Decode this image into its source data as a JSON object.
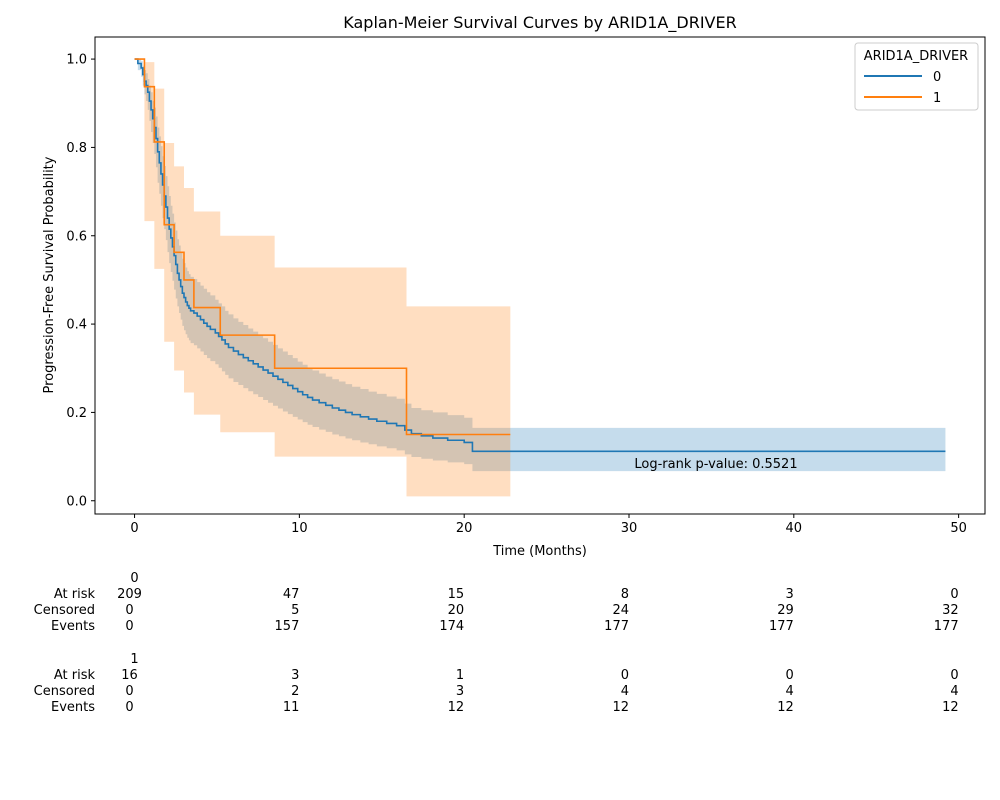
{
  "chart_data": {
    "type": "line",
    "title": "Kaplan-Meier Survival Curves by ARID1A_DRIVER",
    "xlabel": "Time (Months)",
    "ylabel": "Progression-Free Survival Probability",
    "xlim": [
      -2.4,
      51.6
    ],
    "ylim": [
      -0.03,
      1.05
    ],
    "xticks": [
      0,
      10,
      20,
      30,
      40,
      50
    ],
    "xtick_labels": [
      "0",
      "10",
      "20",
      "30",
      "40",
      "50"
    ],
    "yticks": [
      0.0,
      0.2,
      0.4,
      0.6,
      0.8,
      1.0
    ],
    "ytick_labels": [
      "0.0",
      "0.2",
      "0.4",
      "0.6",
      "0.8",
      "1.0"
    ],
    "grid": false,
    "legend": {
      "title": "ARID1A_DRIVER",
      "position": "top-right"
    },
    "annotation": {
      "text": "Log-rank p-value: 0.5521",
      "x": 35,
      "y": 0.07
    },
    "series": [
      {
        "name": "0",
        "color": "#1f77b4",
        "times": [
          0,
          0.2,
          0.4,
          0.5,
          0.6,
          0.7,
          0.8,
          0.9,
          1.0,
          1.1,
          1.2,
          1.3,
          1.4,
          1.5,
          1.6,
          1.7,
          1.8,
          1.9,
          2.0,
          2.1,
          2.2,
          2.3,
          2.4,
          2.5,
          2.6,
          2.7,
          2.8,
          2.9,
          3.0,
          3.1,
          3.2,
          3.3,
          3.4,
          3.6,
          3.8,
          4.0,
          4.2,
          4.4,
          4.6,
          4.9,
          5.1,
          5.3,
          5.5,
          5.7,
          6.0,
          6.3,
          6.6,
          6.9,
          7.2,
          7.5,
          7.8,
          8.1,
          8.4,
          8.7,
          9.0,
          9.3,
          9.6,
          9.9,
          10.2,
          10.5,
          10.8,
          11.2,
          11.6,
          12.0,
          12.4,
          12.8,
          13.2,
          13.7,
          14.2,
          14.7,
          15.3,
          15.9,
          16.4,
          16.8,
          17.4,
          18.1,
          19.0,
          20.0,
          20.5,
          49.2
        ],
        "surv": [
          1.0,
          0.99,
          0.98,
          0.965,
          0.95,
          0.94,
          0.925,
          0.905,
          0.885,
          0.865,
          0.845,
          0.82,
          0.79,
          0.765,
          0.74,
          0.715,
          0.69,
          0.665,
          0.64,
          0.615,
          0.595,
          0.575,
          0.555,
          0.535,
          0.515,
          0.5,
          0.485,
          0.47,
          0.46,
          0.45,
          0.442,
          0.436,
          0.43,
          0.425,
          0.418,
          0.41,
          0.402,
          0.395,
          0.388,
          0.38,
          0.372,
          0.364,
          0.355,
          0.347,
          0.339,
          0.331,
          0.324,
          0.317,
          0.31,
          0.303,
          0.296,
          0.289,
          0.282,
          0.275,
          0.268,
          0.261,
          0.254,
          0.247,
          0.24,
          0.234,
          0.228,
          0.222,
          0.216,
          0.21,
          0.205,
          0.2,
          0.195,
          0.19,
          0.185,
          0.18,
          0.175,
          0.17,
          0.16,
          0.152,
          0.147,
          0.142,
          0.137,
          0.132,
          0.112,
          0.112
        ],
        "ci_lower": [
          1.0,
          0.975,
          0.96,
          0.94,
          0.92,
          0.905,
          0.885,
          0.86,
          0.835,
          0.81,
          0.785,
          0.755,
          0.72,
          0.695,
          0.668,
          0.64,
          0.615,
          0.59,
          0.563,
          0.538,
          0.518,
          0.498,
          0.478,
          0.458,
          0.44,
          0.425,
          0.41,
          0.396,
          0.386,
          0.377,
          0.369,
          0.363,
          0.357,
          0.352,
          0.345,
          0.338,
          0.33,
          0.323,
          0.316,
          0.309,
          0.301,
          0.293,
          0.285,
          0.277,
          0.269,
          0.262,
          0.255,
          0.248,
          0.241,
          0.235,
          0.228,
          0.222,
          0.215,
          0.209,
          0.202,
          0.196,
          0.19,
          0.184,
          0.178,
          0.172,
          0.167,
          0.161,
          0.156,
          0.15,
          0.146,
          0.141,
          0.137,
          0.132,
          0.128,
          0.123,
          0.119,
          0.114,
          0.105,
          0.099,
          0.095,
          0.091,
          0.087,
          0.083,
          0.067,
          0.067
        ],
        "ci_upper": [
          1.0,
          1.0,
          0.995,
          0.985,
          0.975,
          0.968,
          0.955,
          0.94,
          0.925,
          0.905,
          0.89,
          0.87,
          0.845,
          0.825,
          0.803,
          0.78,
          0.758,
          0.735,
          0.712,
          0.69,
          0.668,
          0.65,
          0.63,
          0.612,
          0.592,
          0.578,
          0.563,
          0.548,
          0.538,
          0.528,
          0.52,
          0.513,
          0.507,
          0.502,
          0.495,
          0.487,
          0.48,
          0.472,
          0.465,
          0.455,
          0.447,
          0.44,
          0.43,
          0.422,
          0.413,
          0.405,
          0.398,
          0.39,
          0.383,
          0.375,
          0.368,
          0.36,
          0.353,
          0.345,
          0.338,
          0.33,
          0.323,
          0.315,
          0.308,
          0.301,
          0.295,
          0.288,
          0.281,
          0.275,
          0.27,
          0.264,
          0.258,
          0.253,
          0.247,
          0.242,
          0.236,
          0.231,
          0.22,
          0.21,
          0.205,
          0.2,
          0.194,
          0.188,
          0.165,
          0.165
        ]
      },
      {
        "name": "1",
        "color": "#ff7f0e",
        "times": [
          0,
          0.6,
          1.2,
          1.8,
          2.4,
          3.0,
          3.6,
          5.2,
          8.5,
          16.5,
          22.8
        ],
        "surv": [
          1.0,
          0.9375,
          0.8125,
          0.625,
          0.5625,
          0.5,
          0.4375,
          0.375,
          0.3,
          0.15,
          0.15
        ],
        "ci_lower": [
          1.0,
          0.633,
          0.525,
          0.36,
          0.295,
          0.245,
          0.195,
          0.155,
          0.1,
          0.01,
          0.01
        ],
        "ci_upper": [
          1.0,
          0.993,
          0.933,
          0.81,
          0.757,
          0.708,
          0.655,
          0.6,
          0.528,
          0.44,
          0.44
        ]
      }
    ],
    "risk_table": {
      "columns_x": [
        0,
        10,
        20,
        30,
        40,
        50
      ],
      "row_labels": [
        "At risk",
        "Censored",
        "Events"
      ],
      "groups": [
        {
          "name": "0",
          "at_risk": [
            "209",
            "47",
            "15",
            "8",
            "3",
            "0"
          ],
          "censored": [
            "0",
            "5",
            "20",
            "24",
            "29",
            "32"
          ],
          "events": [
            "0",
            "157",
            "174",
            "177",
            "177",
            "177"
          ]
        },
        {
          "name": "1",
          "at_risk": [
            "16",
            "3",
            "1",
            "0",
            "0",
            "0"
          ],
          "censored": [
            "0",
            "2",
            "3",
            "4",
            "4",
            "4"
          ],
          "events": [
            "0",
            "11",
            "12",
            "12",
            "12",
            "12"
          ]
        }
      ]
    }
  }
}
